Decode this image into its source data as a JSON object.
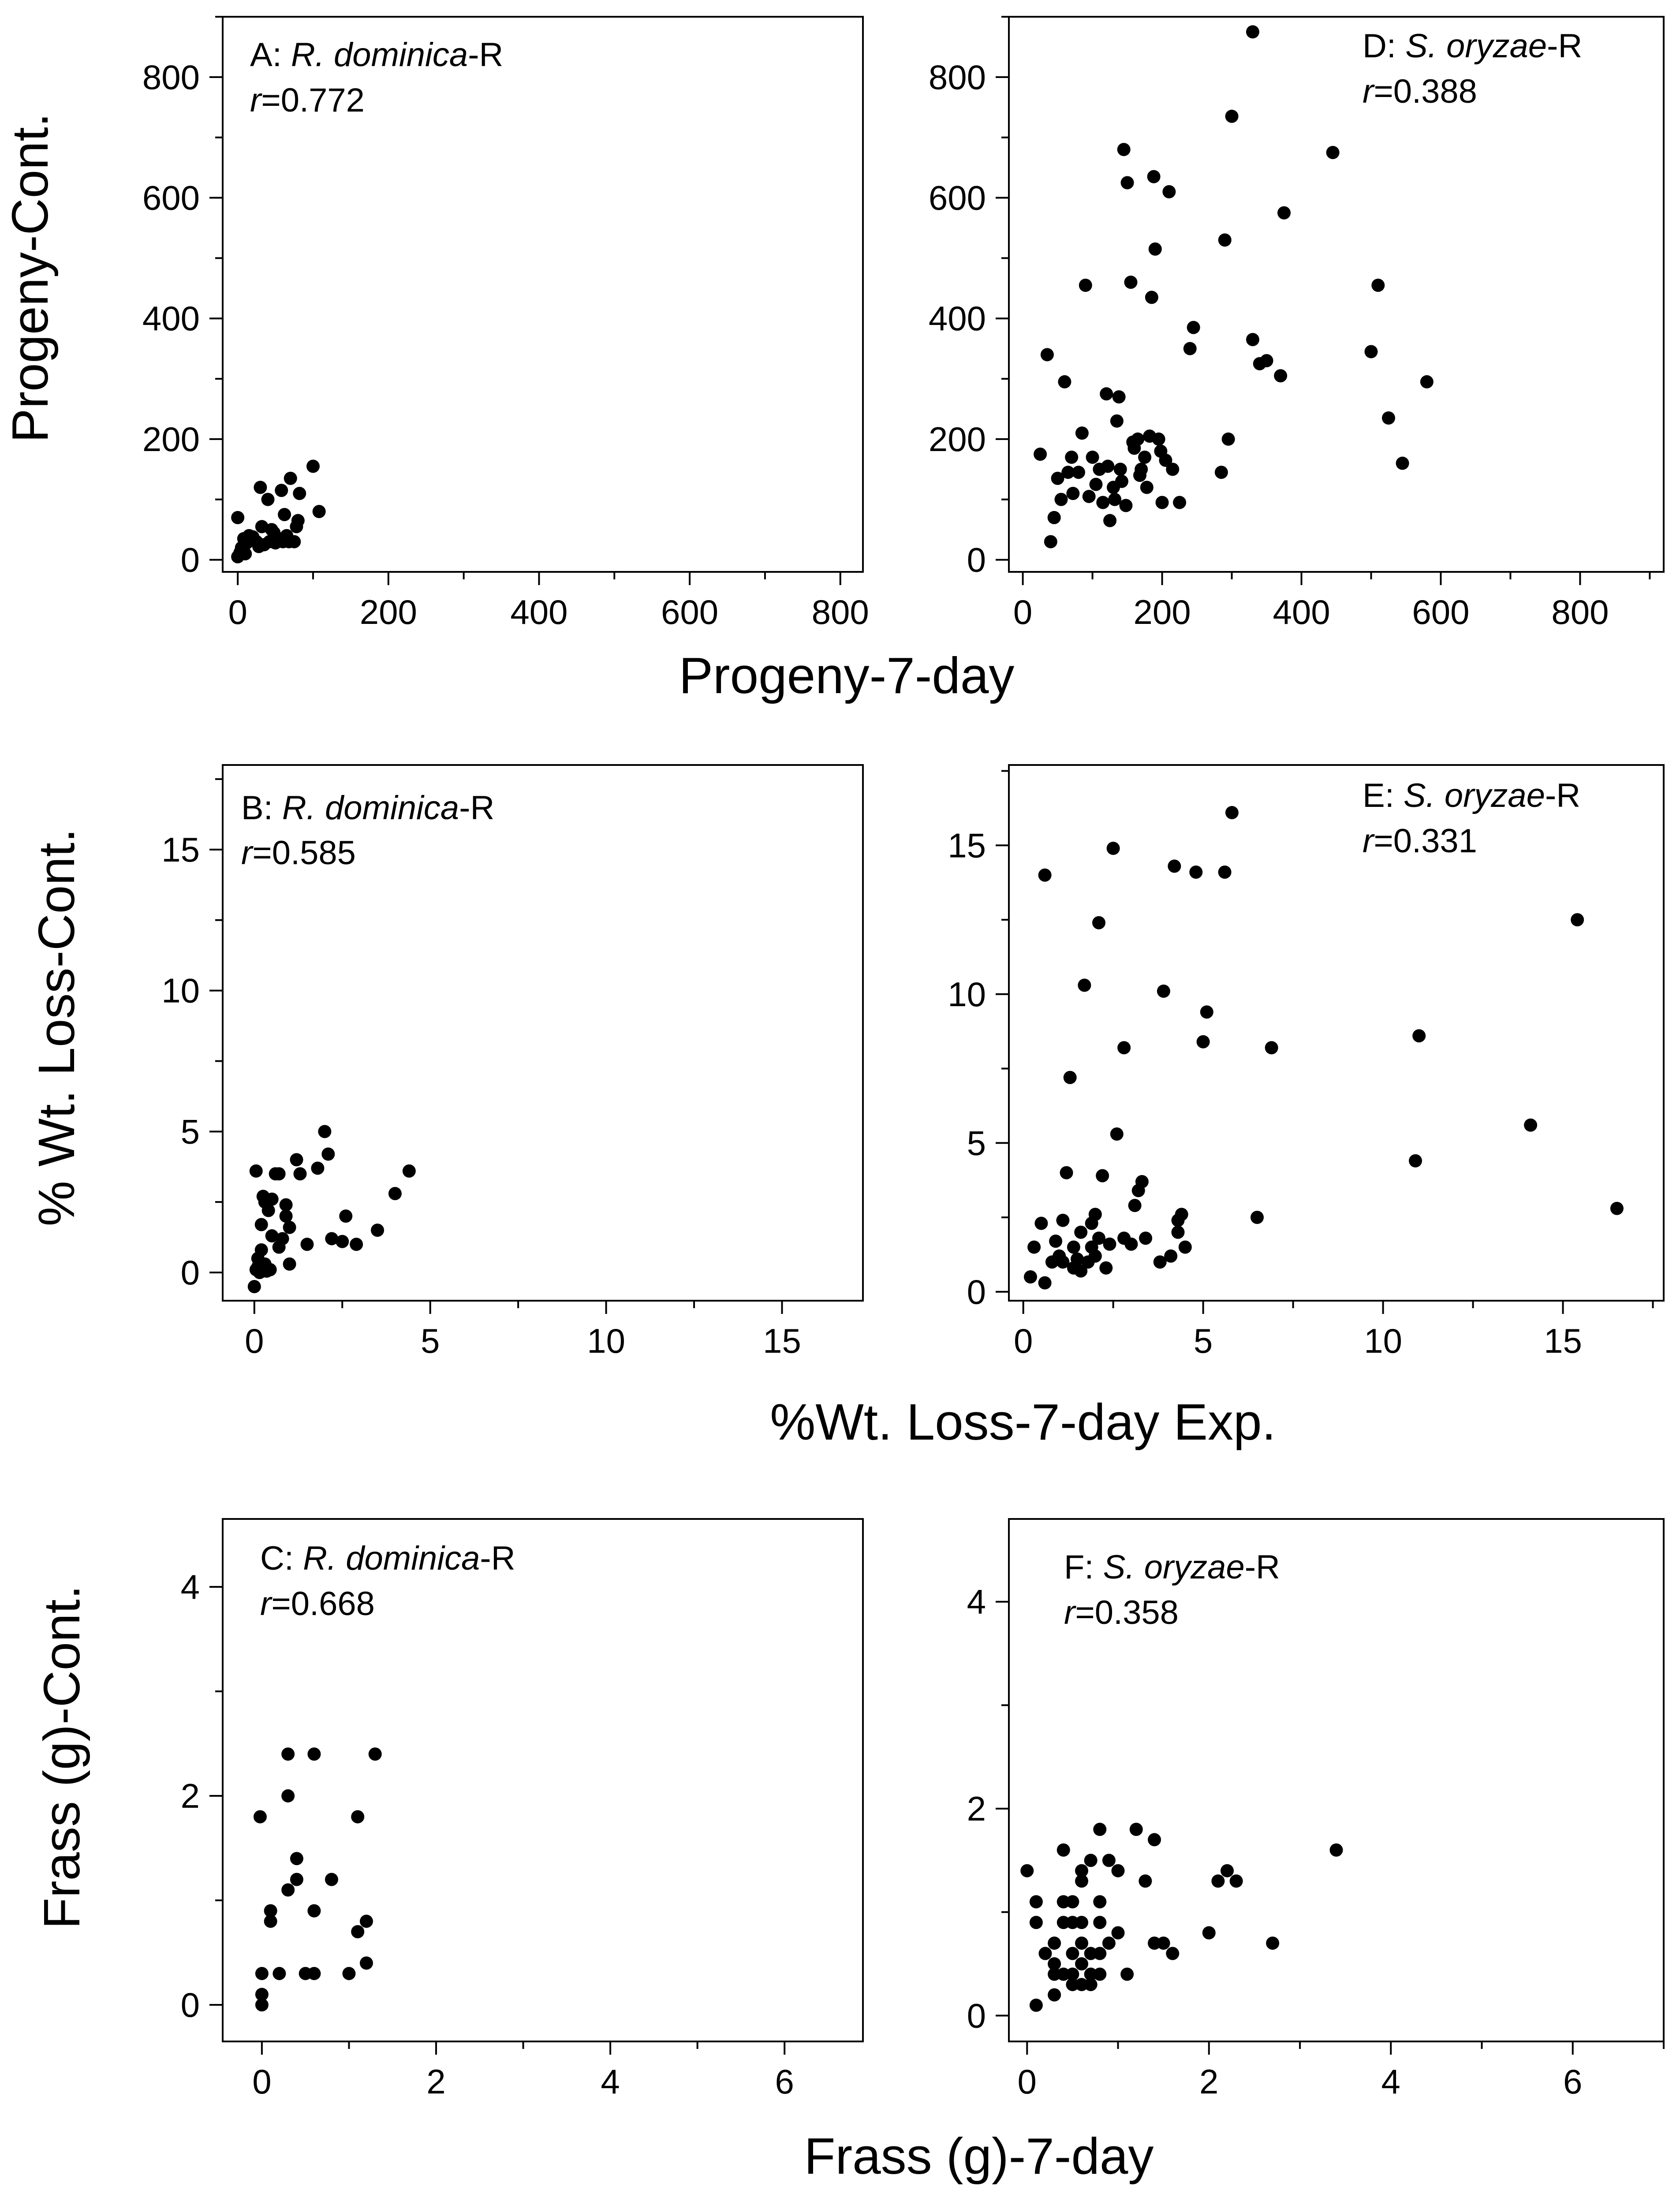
{
  "colors": {
    "ink": "#000000",
    "background": "#ffffff"
  },
  "axis_titles": {
    "y_progeny": "Progeny-Cont.",
    "x_progeny": "Progeny-7-day",
    "y_wtloss": "% Wt. Loss-Cont.",
    "x_wtloss": "%Wt. Loss-7-day Exp.",
    "y_frass": "Frass (g)-Cont.",
    "x_frass": "Frass (g)-7-day"
  },
  "chart_data": [
    {
      "id": "A",
      "type": "scatter",
      "label_prefix": "A: ",
      "species": "R. dominica",
      "label_suffix": "-R",
      "r_symbol": "r",
      "r_value": "=0.772",
      "xlabel": "Progeny-7-day",
      "ylabel": "Progeny-Cont.",
      "xlim": [
        -20,
        830
      ],
      "ylim": [
        -20,
        900
      ],
      "xticks": [
        0,
        200,
        400,
        600,
        800
      ],
      "yticks": [
        0,
        200,
        400,
        600,
        800
      ],
      "x_minor": 100,
      "y_minor": 100,
      "points": [
        [
          0,
          5
        ],
        [
          3,
          12
        ],
        [
          5,
          20
        ],
        [
          8,
          35
        ],
        [
          10,
          10
        ],
        [
          0,
          70
        ],
        [
          12,
          28
        ],
        [
          15,
          40
        ],
        [
          20,
          38
        ],
        [
          25,
          30
        ],
        [
          28,
          22
        ],
        [
          30,
          120
        ],
        [
          32,
          55
        ],
        [
          35,
          25
        ],
        [
          40,
          100
        ],
        [
          42,
          30
        ],
        [
          45,
          50
        ],
        [
          48,
          45
        ],
        [
          50,
          28
        ],
        [
          55,
          35
        ],
        [
          58,
          115
        ],
        [
          60,
          30
        ],
        [
          62,
          75
        ],
        [
          65,
          40
        ],
        [
          68,
          30
        ],
        [
          70,
          135
        ],
        [
          75,
          30
        ],
        [
          78,
          55
        ],
        [
          80,
          65
        ],
        [
          82,
          110
        ],
        [
          100,
          155
        ],
        [
          108,
          80
        ]
      ]
    },
    {
      "id": "D",
      "type": "scatter",
      "label_prefix": "D: ",
      "species": "S. oryzae",
      "label_suffix": "-R",
      "r_symbol": "r",
      "r_value": "=0.388",
      "xlabel": "Progeny-7-day",
      "ylabel": "Progeny-Cont.",
      "xlim": [
        -20,
        920
      ],
      "ylim": [
        -20,
        900
      ],
      "xticks": [
        0,
        200,
        400,
        600,
        800
      ],
      "yticks": [
        0,
        200,
        400,
        600,
        800
      ],
      "x_minor": 100,
      "y_minor": 100,
      "points": [
        [
          25,
          175
        ],
        [
          35,
          340
        ],
        [
          40,
          30
        ],
        [
          45,
          70
        ],
        [
          50,
          135
        ],
        [
          55,
          100
        ],
        [
          60,
          295
        ],
        [
          65,
          145
        ],
        [
          70,
          170
        ],
        [
          72,
          110
        ],
        [
          80,
          145
        ],
        [
          85,
          210
        ],
        [
          90,
          455
        ],
        [
          95,
          105
        ],
        [
          100,
          170
        ],
        [
          105,
          125
        ],
        [
          110,
          150
        ],
        [
          115,
          95
        ],
        [
          120,
          275
        ],
        [
          122,
          155
        ],
        [
          125,
          65
        ],
        [
          130,
          120
        ],
        [
          132,
          100
        ],
        [
          135,
          230
        ],
        [
          138,
          270
        ],
        [
          140,
          150
        ],
        [
          142,
          130
        ],
        [
          145,
          680
        ],
        [
          148,
          90
        ],
        [
          150,
          625
        ],
        [
          155,
          460
        ],
        [
          158,
          195
        ],
        [
          160,
          185
        ],
        [
          165,
          200
        ],
        [
          168,
          140
        ],
        [
          170,
          150
        ],
        [
          175,
          170
        ],
        [
          178,
          120
        ],
        [
          182,
          205
        ],
        [
          185,
          435
        ],
        [
          188,
          635
        ],
        [
          190,
          515
        ],
        [
          195,
          200
        ],
        [
          198,
          180
        ],
        [
          200,
          95
        ],
        [
          205,
          165
        ],
        [
          210,
          610
        ],
        [
          215,
          150
        ],
        [
          225,
          95
        ],
        [
          240,
          350
        ],
        [
          245,
          385
        ],
        [
          285,
          145
        ],
        [
          290,
          530
        ],
        [
          295,
          200
        ],
        [
          300,
          735
        ],
        [
          330,
          875
        ],
        [
          330,
          365
        ],
        [
          340,
          325
        ],
        [
          350,
          330
        ],
        [
          370,
          305
        ],
        [
          375,
          575
        ],
        [
          445,
          675
        ],
        [
          500,
          345
        ],
        [
          510,
          455
        ],
        [
          525,
          235
        ],
        [
          545,
          160
        ],
        [
          580,
          295
        ]
      ]
    },
    {
      "id": "B",
      "type": "scatter",
      "label_prefix": "B: ",
      "species": "R. dominica",
      "label_suffix": "-R",
      "r_symbol": "r",
      "r_value": "=0.585",
      "xlabel": "%Wt. Loss-7-day Exp.",
      "ylabel": "% Wt. Loss-Cont.",
      "xlim": [
        -0.9,
        17.3
      ],
      "ylim": [
        -1.0,
        18.0
      ],
      "xticks": [
        0,
        5,
        10,
        15
      ],
      "yticks": [
        0,
        5,
        10,
        15
      ],
      "x_minor": 2.5,
      "y_minor": 2.5,
      "points": [
        [
          0.0,
          -0.5
        ],
        [
          0.05,
          0.1
        ],
        [
          0.05,
          3.6
        ],
        [
          0.1,
          0.2
        ],
        [
          0.1,
          0.5
        ],
        [
          0.15,
          0.0
        ],
        [
          0.2,
          0.8
        ],
        [
          0.2,
          1.7
        ],
        [
          0.25,
          2.7
        ],
        [
          0.3,
          0.3
        ],
        [
          0.3,
          2.5
        ],
        [
          0.35,
          0.05
        ],
        [
          0.4,
          2.2
        ],
        [
          0.45,
          0.1
        ],
        [
          0.5,
          2.6
        ],
        [
          0.5,
          1.3
        ],
        [
          0.6,
          3.5
        ],
        [
          0.7,
          3.5
        ],
        [
          0.7,
          0.9
        ],
        [
          0.8,
          1.2
        ],
        [
          0.9,
          2.4
        ],
        [
          0.9,
          2.0
        ],
        [
          1.0,
          1.6
        ],
        [
          1.0,
          0.3
        ],
        [
          1.2,
          4.0
        ],
        [
          1.3,
          3.5
        ],
        [
          1.5,
          1.0
        ],
        [
          1.8,
          3.7
        ],
        [
          2.0,
          5.0
        ],
        [
          2.1,
          4.2
        ],
        [
          2.2,
          1.2
        ],
        [
          2.5,
          1.1
        ],
        [
          2.6,
          2.0
        ],
        [
          2.9,
          1.0
        ],
        [
          3.5,
          1.5
        ],
        [
          4.0,
          2.8
        ],
        [
          4.4,
          3.6
        ]
      ]
    },
    {
      "id": "E",
      "type": "scatter",
      "label_prefix": "E: ",
      "species": "S. oryzae",
      "label_suffix": "-R",
      "r_symbol": "r",
      "r_value": "=0.331",
      "xlabel": "%Wt. Loss-7-day Exp.",
      "ylabel": "% Wt. Loss-Cont.",
      "xlim": [
        -0.4,
        17.8
      ],
      "ylim": [
        -0.3,
        17.7
      ],
      "xticks": [
        0,
        5,
        10,
        15
      ],
      "yticks": [
        0,
        5,
        10,
        15
      ],
      "x_minor": 2.5,
      "y_minor": 2.5,
      "points": [
        [
          0.2,
          0.5
        ],
        [
          0.3,
          1.5
        ],
        [
          0.5,
          2.3
        ],
        [
          0.6,
          0.3
        ],
        [
          0.6,
          14.0
        ],
        [
          0.8,
          1.0
        ],
        [
          0.9,
          1.7
        ],
        [
          1.0,
          1.2
        ],
        [
          1.1,
          1.0
        ],
        [
          1.1,
          2.4
        ],
        [
          1.2,
          4.0
        ],
        [
          1.3,
          7.2
        ],
        [
          1.4,
          1.5
        ],
        [
          1.4,
          0.8
        ],
        [
          1.5,
          1.1
        ],
        [
          1.6,
          0.7
        ],
        [
          1.6,
          2.0
        ],
        [
          1.7,
          10.3
        ],
        [
          1.8,
          1.0
        ],
        [
          1.9,
          1.5
        ],
        [
          1.9,
          2.3
        ],
        [
          2.0,
          1.2
        ],
        [
          2.0,
          2.6
        ],
        [
          2.1,
          12.4
        ],
        [
          2.1,
          1.8
        ],
        [
          2.2,
          3.9
        ],
        [
          2.3,
          0.8
        ],
        [
          2.4,
          1.6
        ],
        [
          2.5,
          14.9
        ],
        [
          2.6,
          5.3
        ],
        [
          2.8,
          8.2
        ],
        [
          2.8,
          1.8
        ],
        [
          3.0,
          1.6
        ],
        [
          3.1,
          2.9
        ],
        [
          3.2,
          3.4
        ],
        [
          3.3,
          3.7
        ],
        [
          3.4,
          1.8
        ],
        [
          3.8,
          1.0
        ],
        [
          3.9,
          10.1
        ],
        [
          4.1,
          1.2
        ],
        [
          4.2,
          14.3
        ],
        [
          4.3,
          2.0
        ],
        [
          4.3,
          2.4
        ],
        [
          4.4,
          2.6
        ],
        [
          4.5,
          1.5
        ],
        [
          4.8,
          14.1
        ],
        [
          5.0,
          8.4
        ],
        [
          5.1,
          9.4
        ],
        [
          5.6,
          14.1
        ],
        [
          5.8,
          16.1
        ],
        [
          6.5,
          2.5
        ],
        [
          6.9,
          8.2
        ],
        [
          10.9,
          4.4
        ],
        [
          11.0,
          8.6
        ],
        [
          14.1,
          5.6
        ],
        [
          15.4,
          12.5
        ],
        [
          16.5,
          2.8
        ]
      ]
    },
    {
      "id": "C",
      "type": "scatter",
      "label_prefix": "C: ",
      "species": "R. dominica",
      "label_suffix": "-R",
      "r_symbol": "r",
      "r_value": "=0.668",
      "xlabel": "Frass (g)-7-day",
      "ylabel": "Frass (g)-Cont.",
      "xlim": [
        -0.45,
        6.9
      ],
      "ylim": [
        -0.35,
        4.65
      ],
      "xticks": [
        0,
        2,
        4,
        6
      ],
      "yticks": [
        0,
        2,
        4
      ],
      "x_minor": 1,
      "y_minor": 1,
      "points": [
        [
          -0.02,
          1.8
        ],
        [
          0.0,
          0.3
        ],
        [
          0.0,
          0.1
        ],
        [
          0.0,
          0.0
        ],
        [
          0.1,
          0.9
        ],
        [
          0.1,
          0.8
        ],
        [
          0.2,
          0.3
        ],
        [
          0.3,
          1.1
        ],
        [
          0.3,
          2.0
        ],
        [
          0.3,
          2.4
        ],
        [
          0.4,
          1.2
        ],
        [
          0.4,
          1.4
        ],
        [
          0.5,
          0.3
        ],
        [
          0.6,
          0.3
        ],
        [
          0.6,
          0.9
        ],
        [
          0.6,
          2.4
        ],
        [
          0.8,
          1.2
        ],
        [
          1.0,
          0.3
        ],
        [
          1.1,
          0.7
        ],
        [
          1.1,
          1.8
        ],
        [
          1.2,
          0.8
        ],
        [
          1.2,
          0.4
        ],
        [
          1.3,
          2.4
        ]
      ]
    },
    {
      "id": "F",
      "type": "scatter",
      "label_prefix": "F: ",
      "species": "S. oryzae",
      "label_suffix": "-R",
      "r_symbol": "r",
      "r_value": "=0.358",
      "xlabel": "Frass (g)-7-day",
      "ylabel": "Frass (g)-Cont.",
      "xlim": [
        -0.2,
        7.0
      ],
      "ylim": [
        -0.25,
        4.8
      ],
      "xticks": [
        0,
        2,
        4,
        6
      ],
      "yticks": [
        0,
        2,
        4
      ],
      "x_minor": 1,
      "y_minor": 1,
      "points": [
        [
          0.0,
          1.4
        ],
        [
          0.1,
          0.1
        ],
        [
          0.1,
          0.9
        ],
        [
          0.1,
          1.1
        ],
        [
          0.2,
          0.6
        ],
        [
          0.3,
          0.2
        ],
        [
          0.3,
          0.5
        ],
        [
          0.3,
          0.7
        ],
        [
          0.3,
          0.4
        ],
        [
          0.4,
          1.6
        ],
        [
          0.4,
          0.4
        ],
        [
          0.4,
          0.9
        ],
        [
          0.4,
          1.1
        ],
        [
          0.5,
          0.3
        ],
        [
          0.5,
          0.6
        ],
        [
          0.5,
          1.1
        ],
        [
          0.5,
          0.9
        ],
        [
          0.5,
          0.4
        ],
        [
          0.6,
          1.3
        ],
        [
          0.6,
          1.4
        ],
        [
          0.6,
          0.7
        ],
        [
          0.6,
          0.3
        ],
        [
          0.6,
          0.5
        ],
        [
          0.6,
          0.9
        ],
        [
          0.7,
          0.6
        ],
        [
          0.7,
          1.5
        ],
        [
          0.7,
          0.3
        ],
        [
          0.7,
          0.4
        ],
        [
          0.8,
          0.6
        ],
        [
          0.8,
          1.1
        ],
        [
          0.8,
          0.9
        ],
        [
          0.8,
          1.8
        ],
        [
          0.8,
          0.4
        ],
        [
          0.9,
          1.5
        ],
        [
          0.9,
          0.7
        ],
        [
          1.0,
          1.4
        ],
        [
          1.0,
          0.8
        ],
        [
          1.1,
          0.4
        ],
        [
          1.2,
          1.8
        ],
        [
          1.3,
          1.3
        ],
        [
          1.4,
          1.7
        ],
        [
          1.4,
          0.7
        ],
        [
          1.5,
          0.7
        ],
        [
          1.6,
          0.6
        ],
        [
          2.0,
          0.8
        ],
        [
          2.1,
          1.3
        ],
        [
          2.2,
          1.4
        ],
        [
          2.3,
          1.3
        ],
        [
          2.7,
          0.7
        ],
        [
          3.4,
          1.6
        ]
      ]
    }
  ]
}
